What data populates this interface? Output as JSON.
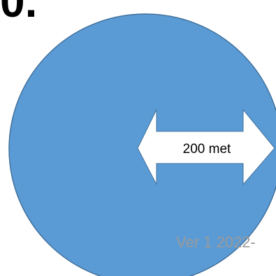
{
  "header": {
    "corner_text": "0."
  },
  "diagram": {
    "circle_color": "#5b9bd5",
    "circle_outline_color": "#41719c",
    "arrow_fill_color": "#ffffff",
    "arrow_outline_color": "#41719c",
    "measure_label": "200 met"
  },
  "footer": {
    "version_text": "Ver 1 2022-"
  }
}
